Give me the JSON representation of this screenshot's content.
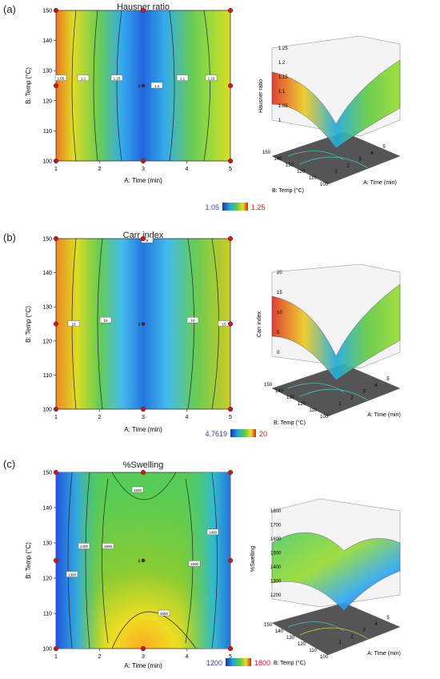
{
  "chart_data": [
    {
      "type": "heatmap",
      "panel_label": "(a)",
      "title": "Hausner ratio",
      "xlabel": "A: Time (min)",
      "ylabel": "B: Temp (°C)",
      "x_ticks": [
        "1",
        "2",
        "3",
        "4",
        "5"
      ],
      "y_ticks": [
        "100",
        "110",
        "120",
        "130",
        "140",
        "150"
      ],
      "xlim": [
        1,
        5
      ],
      "ylim": [
        100,
        150
      ],
      "color_scale": {
        "min_label": "1.05",
        "max_label": "1.25",
        "min_color": "#3344bb",
        "max_color": "#cc2222"
      },
      "contour_labels": [
        "1.05",
        "1.1",
        "1.15",
        "1.2",
        "1.1",
        "1.15"
      ],
      "design_points": [
        [
          1,
          100
        ],
        [
          1,
          125
        ],
        [
          1,
          150
        ],
        [
          3,
          100
        ],
        [
          3,
          125
        ],
        [
          3,
          150
        ],
        [
          5,
          100
        ],
        [
          5,
          125
        ],
        [
          5,
          150
        ]
      ],
      "surface_3d": {
        "zlabel": "Hausner ratio",
        "z_ticks": [
          "1",
          "1.05",
          "1.1",
          "1.15",
          "1.2",
          "1.25"
        ],
        "x_ticks": [
          "1",
          "2",
          "3",
          "4",
          "5"
        ],
        "y_ticks": [
          "100",
          "110",
          "120",
          "130",
          "140",
          "150"
        ],
        "xlabel": "A: Time (min)",
        "ylabel": "B: Temp (°C)"
      }
    },
    {
      "type": "heatmap",
      "panel_label": "(b)",
      "title": "Carr index",
      "xlabel": "A: Time (min)",
      "ylabel": "B: Temp (°C)",
      "x_ticks": [
        "1",
        "2",
        "3",
        "4",
        "5"
      ],
      "y_ticks": [
        "100",
        "110",
        "120",
        "130",
        "140",
        "150"
      ],
      "xlim": [
        1,
        5
      ],
      "ylim": [
        100,
        150
      ],
      "color_scale": {
        "min_label": "4.7619",
        "max_label": "20",
        "min_color": "#3344bb",
        "max_color": "#cc2222"
      },
      "contour_labels": [
        "5",
        "10",
        "15",
        "10",
        "15"
      ],
      "design_points": [
        [
          1,
          100
        ],
        [
          1,
          125
        ],
        [
          1,
          150
        ],
        [
          3,
          100
        ],
        [
          3,
          125
        ],
        [
          3,
          150
        ],
        [
          5,
          100
        ],
        [
          5,
          125
        ],
        [
          5,
          150
        ]
      ],
      "surface_3d": {
        "zlabel": "Carr index",
        "z_ticks": [
          "0",
          "5",
          "10",
          "15",
          "20"
        ],
        "x_ticks": [
          "1",
          "2",
          "3",
          "4",
          "5"
        ],
        "y_ticks": [
          "100",
          "110",
          "120",
          "130",
          "140",
          "150"
        ],
        "xlabel": "A: Time (min)",
        "ylabel": "B: Temp (°C)"
      }
    },
    {
      "type": "heatmap",
      "panel_label": "(c)",
      "title": "%Swelling",
      "xlabel": "A: Time (min)",
      "ylabel": "B: Temp (°C)",
      "x_ticks": [
        "1",
        "2",
        "3",
        "4",
        "5"
      ],
      "y_ticks": [
        "100",
        "110",
        "120",
        "130",
        "140",
        "150"
      ],
      "xlim": [
        1,
        5
      ],
      "ylim": [
        100,
        150
      ],
      "color_scale": {
        "min_label": "1200",
        "max_label": "1800",
        "min_color": "#3344bb",
        "max_color": "#cc2222"
      },
      "contour_labels": [
        "1600",
        "1400",
        "1500",
        "1500",
        "1400",
        "1600",
        "1300"
      ],
      "design_points": [
        [
          1,
          100
        ],
        [
          1,
          125
        ],
        [
          1,
          150
        ],
        [
          3,
          100
        ],
        [
          3,
          125
        ],
        [
          3,
          150
        ],
        [
          5,
          100
        ],
        [
          5,
          125
        ],
        [
          5,
          150
        ]
      ],
      "surface_3d": {
        "zlabel": "%Swelling",
        "z_ticks": [
          "1200",
          "1300",
          "1400",
          "1500",
          "1600",
          "1700",
          "1800"
        ],
        "x_ticks": [
          "1",
          "2",
          "3",
          "4",
          "5"
        ],
        "y_ticks": [
          "100",
          "110",
          "120",
          "130",
          "140",
          "150"
        ],
        "xlabel": "A: Time (min)",
        "ylabel": "B: Temp (°C)"
      }
    }
  ]
}
